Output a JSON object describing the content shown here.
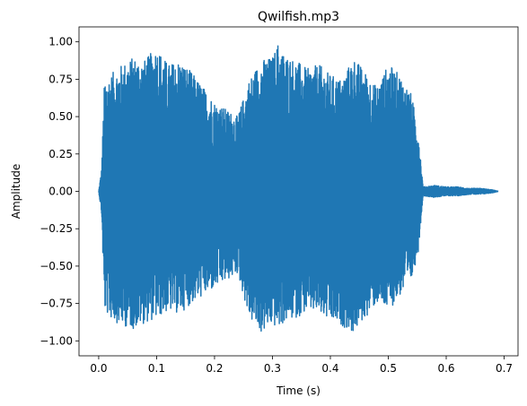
{
  "chart_data": {
    "type": "line",
    "title": "Qwilfish.mp3",
    "xlabel": "Time (s)",
    "ylabel": "Amplitude",
    "xlim": [
      -0.034,
      0.724
    ],
    "ylim": [
      -1.1,
      1.1
    ],
    "grid": false,
    "xticks": [
      0.0,
      0.1,
      0.2,
      0.3,
      0.4,
      0.5,
      0.6,
      0.7
    ],
    "xtick_labels": [
      "0.0",
      "0.1",
      "0.2",
      "0.3",
      "0.4",
      "0.5",
      "0.6",
      "0.7"
    ],
    "yticks": [
      -1.0,
      -0.75,
      -0.5,
      -0.25,
      0.0,
      0.25,
      0.5,
      0.75,
      1.0
    ],
    "ytick_labels": [
      "−1.00",
      "−0.75",
      "−0.50",
      "−0.25",
      "0.00",
      "0.25",
      "0.50",
      "0.75",
      "1.00"
    ],
    "duration": 0.69,
    "series": [
      {
        "color": "#1f77b4",
        "envelope_time": [
          0.0,
          0.005,
          0.01,
          0.02,
          0.04,
          0.06,
          0.08,
          0.1,
          0.12,
          0.14,
          0.16,
          0.18,
          0.2,
          0.22,
          0.24,
          0.26,
          0.28,
          0.3,
          0.31,
          0.32,
          0.34,
          0.36,
          0.38,
          0.4,
          0.42,
          0.44,
          0.46,
          0.48,
          0.5,
          0.52,
          0.54,
          0.552,
          0.56,
          0.58,
          0.6,
          0.62,
          0.64,
          0.66,
          0.68,
          0.69
        ],
        "envelope_upper": [
          0.0,
          0.15,
          0.75,
          0.78,
          0.85,
          0.9,
          0.88,
          0.97,
          0.85,
          0.88,
          0.8,
          0.7,
          0.6,
          0.55,
          0.5,
          0.75,
          0.88,
          0.9,
          1.0,
          0.92,
          0.88,
          0.82,
          0.85,
          0.78,
          0.75,
          0.9,
          0.8,
          0.7,
          0.85,
          0.78,
          0.65,
          0.4,
          0.03,
          0.04,
          0.03,
          0.03,
          0.02,
          0.02,
          0.01,
          0.0
        ],
        "envelope_lower": [
          0.0,
          -0.15,
          -0.8,
          -0.85,
          -0.9,
          -0.92,
          -0.88,
          -0.85,
          -0.8,
          -0.82,
          -0.75,
          -0.7,
          -0.65,
          -0.6,
          -0.55,
          -0.85,
          -0.95,
          -0.9,
          -0.92,
          -0.88,
          -0.85,
          -0.8,
          -0.82,
          -0.88,
          -0.9,
          -0.95,
          -0.85,
          -0.75,
          -0.8,
          -0.7,
          -0.6,
          -0.4,
          -0.03,
          -0.04,
          -0.03,
          -0.03,
          -0.02,
          -0.02,
          -0.01,
          0.0
        ]
      }
    ]
  }
}
